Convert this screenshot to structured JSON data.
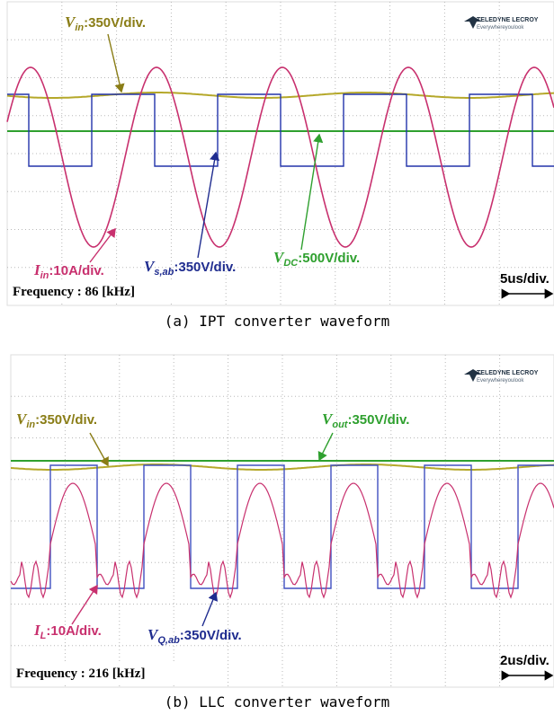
{
  "panels": [
    {
      "logo": {
        "brand": "TELEDYNE LECROY",
        "tagline": "Everywhereyoulook"
      },
      "labels": [
        {
          "symbol": "V",
          "sub": "in",
          "scale": ":350V/div."
        },
        {
          "symbol": "I",
          "sub": "in",
          "scale": ":10A/div."
        },
        {
          "symbol": "V",
          "sub": "s,ab",
          "scale": ":350V/div."
        },
        {
          "symbol": "V",
          "sub": "DC",
          "scale": ":500V/div."
        }
      ],
      "frequency": "Frequency : 86 [kHz]",
      "timebase": "5us/div.",
      "caption": "(a)  IPT converter waveform"
    },
    {
      "logo": {
        "brand": "TELEDYNE LECROY",
        "tagline": "Everywhereyoulook"
      },
      "labels": [
        {
          "symbol": "V",
          "sub": "in",
          "scale": ":350V/div."
        },
        {
          "symbol": "V",
          "sub": "out",
          "scale": ":350V/div."
        },
        {
          "symbol": "I",
          "sub": "L",
          "scale": ":10A/div."
        },
        {
          "symbol": "V",
          "sub": "Q,ab",
          "scale": ":350V/div."
        }
      ],
      "frequency": "Frequency : 216 [kHz]",
      "timebase": "2us/div.",
      "caption": "(b)  LLC converter waveform"
    }
  ]
}
